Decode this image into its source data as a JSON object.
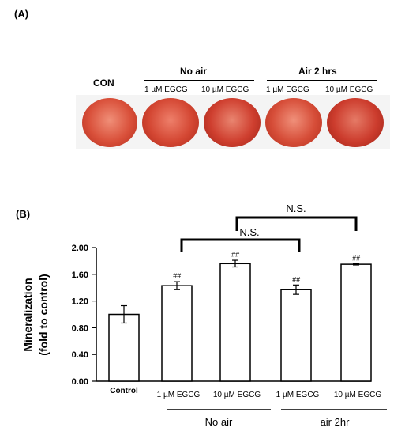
{
  "panel_a": {
    "label": "(A)",
    "con_label": "CON",
    "groups": [
      {
        "name": "No air",
        "subs": [
          "1 µM EGCG",
          "10 µM EGCG"
        ]
      },
      {
        "name": "Air 2 hrs",
        "subs": [
          "1 µM EGCG",
          "10 µM EGCG"
        ]
      }
    ],
    "well_colors": [
      "#c0392b",
      "#a93226"
    ]
  },
  "panel_b": {
    "label": "(B)"
  },
  "chart_data": {
    "type": "bar",
    "title": "",
    "ylabel_line1": "Mineralization",
    "ylabel_line2": "(fold to control)",
    "ylim": [
      0,
      2.0
    ],
    "yticks": [
      "0.00",
      "0.40",
      "0.80",
      "1.20",
      "1.60",
      "2.00"
    ],
    "ytick_values": [
      0,
      0.4,
      0.8,
      1.2,
      1.6,
      2.0
    ],
    "categories": [
      "Control",
      "1 µM EGCG",
      "10 µM EGCG",
      "1 µM EGCG",
      "10 µM EGCG"
    ],
    "values": [
      1.0,
      1.43,
      1.76,
      1.37,
      1.75
    ],
    "errors": [
      0.13,
      0.06,
      0.05,
      0.07,
      0.01
    ],
    "markers": [
      "",
      "##",
      "##",
      "##",
      "##"
    ],
    "group_labels": [
      "No air",
      "air 2hr"
    ],
    "comparisons": [
      {
        "label": "N.S.",
        "from": 1,
        "to": 3
      },
      {
        "label": "N.S.",
        "from": 2,
        "to": 4
      }
    ]
  }
}
